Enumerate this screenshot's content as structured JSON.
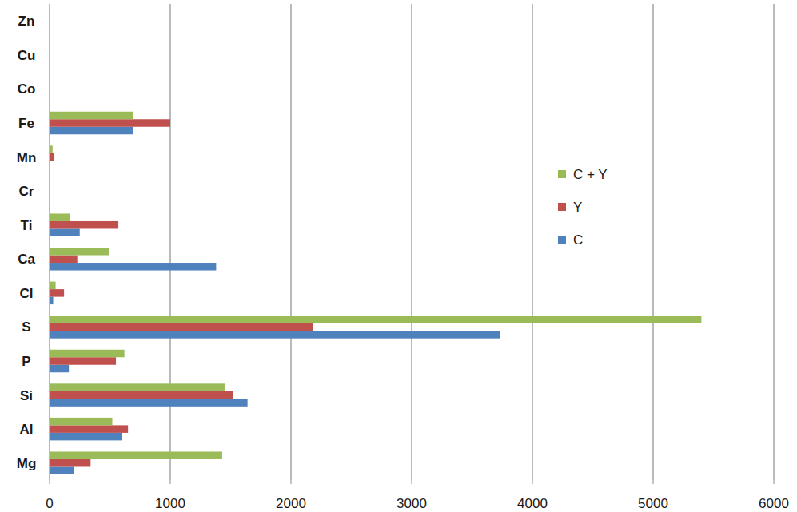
{
  "chart_data": {
    "type": "bar",
    "orientation": "horizontal",
    "categories": [
      "Mg",
      "Al",
      "Si",
      "P",
      "S",
      "Cl",
      "Ca",
      "Ti",
      "Cr",
      "Mn",
      "Fe",
      "Co",
      "Cu",
      "Zn"
    ],
    "series": [
      {
        "name": "C",
        "color": "#4f81bd",
        "values": [
          200,
          600,
          1640,
          160,
          3730,
          30,
          1380,
          250,
          0,
          0,
          690,
          0,
          0,
          0
        ]
      },
      {
        "name": "Y",
        "color": "#c0504d",
        "values": [
          340,
          650,
          1520,
          550,
          2180,
          120,
          230,
          570,
          0,
          40,
          1000,
          0,
          0,
          0
        ]
      },
      {
        "name": "C + Y",
        "color": "#9bbb59",
        "values": [
          1430,
          520,
          1450,
          620,
          5400,
          50,
          490,
          170,
          0,
          25,
          690,
          0,
          0,
          0
        ]
      }
    ],
    "xlim": [
      0,
      6000
    ],
    "xticks": [
      0,
      1000,
      2000,
      3000,
      4000,
      5000,
      6000
    ],
    "grid": true,
    "legend": "right"
  }
}
